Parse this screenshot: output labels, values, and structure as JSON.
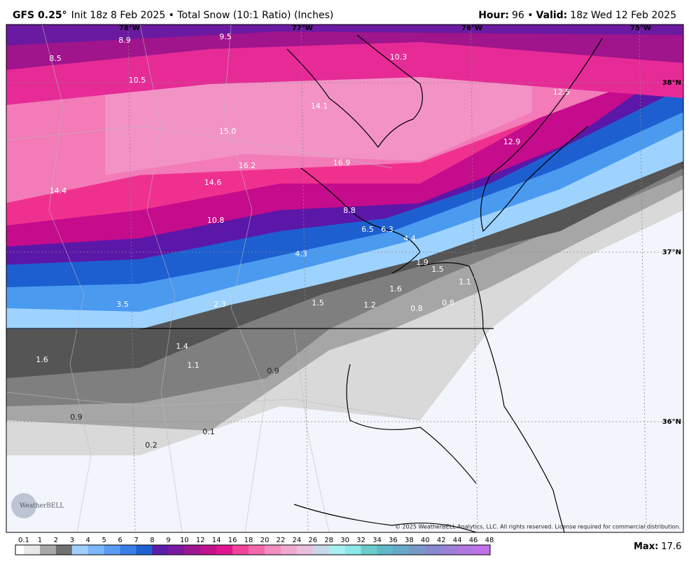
{
  "header": {
    "model": "GFS 0.25°",
    "description": "Init 18z 8 Feb 2025 • Total Snow (10:1 Ratio) (Inches)",
    "hour_label": "Hour:",
    "hour_value": "96 •",
    "valid_label": "Valid:",
    "valid_value": "18z Wed 12 Feb 2025"
  },
  "map": {
    "longitudes": [
      "78°W",
      "77°W",
      "76°W",
      "75°W"
    ],
    "latitudes": [
      "38°N",
      "37°N",
      "36°N"
    ],
    "points": [
      "8.9",
      "9.5",
      "10.3",
      "8.5",
      "10.5",
      "12.5",
      "14.1",
      "15.0",
      "12.9",
      "16.2",
      "16.9",
      "14.4",
      "14.6",
      "8.8",
      "10.8",
      "6.5",
      "6.3",
      "4.4",
      "4.3",
      "1.9",
      "1.5",
      "1.1",
      "1.6",
      "3.5",
      "2.3",
      "1.5",
      "1.2",
      "0.8",
      "0.8",
      "1.4",
      "1.6",
      "1.1",
      "0.9",
      "0.9",
      "0.1",
      "0.2"
    ],
    "logo": "WeatherBELL",
    "copyright": "© 2025 WeatherBELL Analytics, LLC. All rights reserved. License required for commercial distribution."
  },
  "colorbar": {
    "ticks": [
      0.1,
      1,
      2,
      3,
      4,
      5,
      6,
      7,
      8,
      9,
      10,
      12,
      14,
      16,
      18,
      20,
      22,
      24,
      26,
      28,
      30,
      32,
      34,
      36,
      38,
      40,
      42,
      44,
      46,
      48
    ],
    "colors": [
      "#e8e8e8",
      "#a8a8a8",
      "#707070",
      "#9fd0ff",
      "#7cb6fb",
      "#5a9cf3",
      "#3a7fe8",
      "#1f5fcf",
      "#5a1ea8",
      "#7a189e",
      "#9c168f",
      "#c0128c",
      "#e0168e",
      "#f0449c",
      "#f26aac",
      "#f28fc0",
      "#f0a9d0",
      "#e8c0dc",
      "#c8d8e8",
      "#a8f0f0",
      "#8ae8e8",
      "#6ccccc",
      "#60b8c8",
      "#68a8c8",
      "#7898c8",
      "#8888d0",
      "#9c80d8",
      "#b078e0",
      "#c070e8"
    ]
  },
  "max": {
    "label": "Max:",
    "value": "17.6"
  }
}
